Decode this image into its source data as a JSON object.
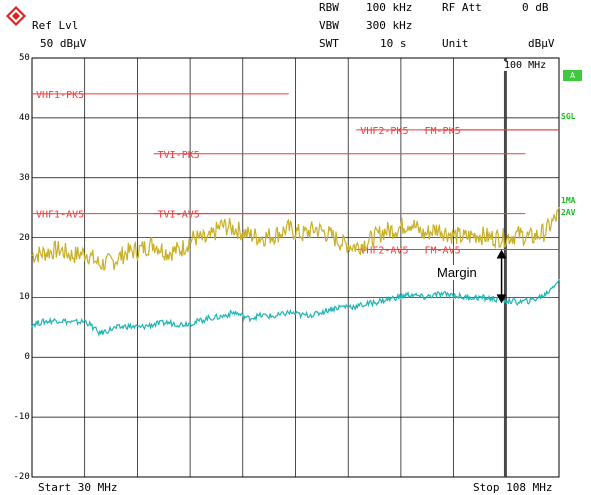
{
  "header": {
    "ref_lvl_label": "Ref Lvl",
    "ref_lvl_value": "50 dBµV",
    "rbw_label": "RBW",
    "rbw_value": "100 kHz",
    "vbw_label": "VBW",
    "vbw_value": "300 kHz",
    "swt_label": "SWT",
    "swt_value": "10 s",
    "rf_att_label": "RF Att",
    "rf_att_value": "0 dB",
    "unit_label": "Unit",
    "unit_value": "dBµV"
  },
  "plot": {
    "marker_label": "100 MHz",
    "start_label": "Start 30 MHz",
    "stop_label": "Stop 108 MHz",
    "margin_label": "Margin"
  },
  "sidebar": {
    "a_badge": "A",
    "sgl": "SGL",
    "trace1": "1MA",
    "trace2": "2AV"
  },
  "colors": {
    "limit_line": "#ee3c3c",
    "peak_trace": "#c8b028",
    "avg_trace": "#1fb5b5",
    "grid": "#000000",
    "sidebar_green": "#19c019",
    "logo_red": "#e0201e"
  },
  "chart_data": {
    "type": "line",
    "xlabel": "",
    "ylabel": "",
    "x_range_mhz": [
      30,
      108
    ],
    "ylim": [
      -20,
      50
    ],
    "y_ticks": [
      50,
      40,
      30,
      20,
      10,
      0,
      -10,
      -20
    ],
    "grid": true,
    "limit_lines": [
      {
        "name": "VHF1-PK5",
        "level": 44,
        "x_start": 30,
        "x_end": 68
      },
      {
        "name": "VHF2-PK5",
        "level": 38,
        "x_start": 78,
        "x_end": 108
      },
      {
        "name": "FM-PK5",
        "level": 38,
        "x_start": 88,
        "x_end": 108
      },
      {
        "name": "TVI-PK5",
        "level": 34,
        "x_start": 48,
        "x_end": 103
      },
      {
        "name": "VHF1-AV5",
        "level": 24,
        "x_start": 30,
        "x_end": 68
      },
      {
        "name": "TVI-AV5",
        "level": 24,
        "x_start": 48,
        "x_end": 103
      },
      {
        "name": "VHF2-AV5",
        "level": 18,
        "x_start": 78,
        "x_end": 108
      },
      {
        "name": "FM-AV5",
        "level": 18,
        "x_start": 88,
        "x_end": 108
      }
    ],
    "series": [
      {
        "name": "1MA",
        "x": [
          30,
          32,
          34,
          36,
          38,
          40,
          42,
          44,
          46,
          48,
          50,
          52,
          54,
          56,
          58,
          60,
          62,
          64,
          66,
          68,
          70,
          72,
          74,
          76,
          78,
          80,
          82,
          84,
          86,
          88,
          90,
          92,
          94,
          96,
          98,
          100,
          102,
          104,
          106,
          108
        ],
        "values": [
          17,
          17.5,
          18,
          17,
          17.5,
          15.5,
          16,
          17.5,
          18,
          19,
          17.5,
          18,
          20,
          19.5,
          22,
          21.5,
          20.5,
          20,
          20.5,
          21.5,
          20.5,
          21.5,
          20.5,
          19,
          18.5,
          19.5,
          21,
          21.5,
          22.5,
          20.5,
          21.5,
          20.5,
          20,
          20.5,
          20,
          20,
          20.5,
          20,
          21,
          24
        ]
      },
      {
        "name": "2AV",
        "x": [
          30,
          32,
          34,
          36,
          38,
          40,
          42,
          44,
          46,
          48,
          50,
          52,
          54,
          56,
          58,
          60,
          62,
          64,
          66,
          68,
          70,
          72,
          74,
          76,
          78,
          80,
          82,
          84,
          86,
          88,
          90,
          92,
          94,
          96,
          98,
          100,
          102,
          104,
          106,
          108
        ],
        "values": [
          5.5,
          6,
          6.2,
          5.8,
          6,
          4,
          4.8,
          5.2,
          5,
          5.5,
          5.8,
          5.5,
          5.8,
          6.5,
          6.8,
          7.5,
          6.5,
          7,
          6.8,
          7.5,
          7,
          7.2,
          8,
          8.5,
          8.5,
          9,
          9.5,
          10,
          10.5,
          10,
          10.5,
          10.5,
          10,
          10,
          9.8,
          9.5,
          9.2,
          9.5,
          10.5,
          13
        ]
      }
    ]
  }
}
